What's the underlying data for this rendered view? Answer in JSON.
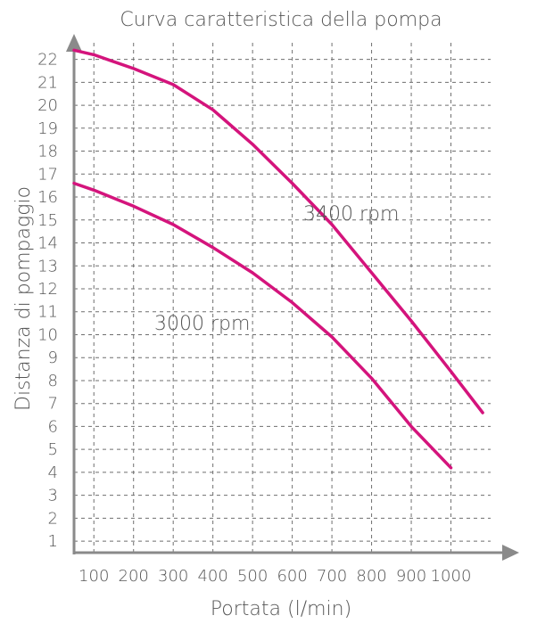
{
  "chart_data": {
    "type": "line",
    "title": "Curva caratteristica della pompa",
    "xlabel": "Portata (l/min)",
    "ylabel": "Distanza di pompaggio",
    "x_ticks": [
      100,
      200,
      300,
      400,
      500,
      600,
      700,
      800,
      900,
      1000
    ],
    "y_ticks": [
      1,
      2,
      3,
      4,
      5,
      6,
      7,
      8,
      9,
      10,
      11,
      12,
      13,
      14,
      15,
      16,
      17,
      18,
      19,
      20,
      21,
      22
    ],
    "xlim": [
      50,
      1100
    ],
    "ylim": [
      0.5,
      22.8
    ],
    "grid": true,
    "series_color": "#d4147c",
    "axis_color": "#8a8a8a",
    "grid_color": "#6f6f6f",
    "series": [
      {
        "name": "3400 rpm",
        "x": [
          50,
          100,
          200,
          300,
          400,
          500,
          600,
          700,
          800,
          900,
          1000,
          1080
        ],
        "y": [
          22.4,
          22.2,
          21.6,
          20.9,
          19.8,
          18.3,
          16.6,
          14.8,
          12.7,
          10.6,
          8.4,
          6.6
        ]
      },
      {
        "name": "3000 rpm",
        "x": [
          50,
          100,
          200,
          300,
          400,
          500,
          600,
          700,
          800,
          900,
          1000
        ],
        "y": [
          16.6,
          16.3,
          15.6,
          14.8,
          13.8,
          12.7,
          11.4,
          9.9,
          8.1,
          6.0,
          4.2
        ]
      }
    ]
  }
}
